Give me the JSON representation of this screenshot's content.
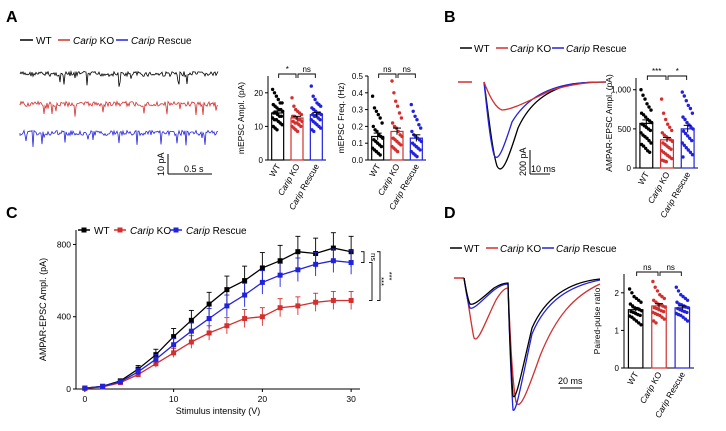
{
  "colors": {
    "wt": "#000000",
    "ko": "#d32f2f",
    "rescue": "#2222dd"
  },
  "panels": {
    "A": {
      "letter": "A",
      "scale_y": "10 pA",
      "scale_x": "0.5 s"
    },
    "B": {
      "letter": "B",
      "scale_y": "200 pA",
      "scale_x": "10 ms"
    },
    "C": {
      "letter": "C"
    },
    "D": {
      "letter": "D",
      "scale_x": "20 ms"
    }
  },
  "legend": {
    "wt": "WT",
    "ko_italic": "Carip",
    "ko_rest": " KO",
    "rescue_italic": "Carip",
    "rescue_rest": " Rescue"
  },
  "xgroups": {
    "wt": "WT",
    "ko": "Carip KO",
    "rescue": "Carip Rescue"
  },
  "chart_data": [
    {
      "id": "A_ampl",
      "type": "bar",
      "categories": [
        "WT",
        "Carip KO",
        "Carip Rescue"
      ],
      "values": [
        14,
        12.5,
        13.5
      ],
      "errors": [
        0.6,
        0.5,
        0.6
      ],
      "ylabel": "mEPSC Ampl. (pA)",
      "ylim": [
        0,
        25
      ],
      "yticks": [
        "0",
        "10",
        "20"
      ],
      "ytickvals": [
        0,
        10,
        20
      ],
      "sig": [
        "*",
        "ns"
      ],
      "points": [
        [
          21,
          20,
          19,
          18,
          17,
          17,
          16.5,
          16,
          15.5,
          15,
          15,
          14.5,
          14,
          14,
          13.5,
          13,
          13,
          12.5,
          12,
          12,
          11.5,
          11,
          10.5,
          10,
          9.5,
          9
        ],
        [
          18.5,
          16,
          15,
          14.5,
          14,
          13.5,
          13,
          13,
          12.5,
          12,
          12,
          11.5,
          11.5,
          11,
          11,
          10.5,
          10,
          10,
          9.5,
          9,
          8.5
        ],
        [
          22,
          19,
          18,
          17,
          16.5,
          16,
          15.5,
          15,
          14.5,
          14,
          14,
          13.5,
          13.5,
          13,
          13,
          12.5,
          12,
          12,
          11.5,
          11,
          10.5,
          10,
          9.5,
          9,
          8.5
        ]
      ]
    },
    {
      "id": "A_freq",
      "type": "bar",
      "categories": [
        "WT",
        "Carip KO",
        "Carip Rescue"
      ],
      "values": [
        0.14,
        0.17,
        0.13
      ],
      "errors": [
        0.02,
        0.02,
        0.02
      ],
      "ylabel": "mEPSC Freq. (Hz)",
      "ylim": [
        0,
        0.5
      ],
      "yticks": [
        "0.0",
        "0.1",
        "0.2",
        "0.3",
        "0.4",
        "0.5"
      ],
      "ytickvals": [
        0,
        0.1,
        0.2,
        0.3,
        0.4,
        0.5
      ],
      "sig": [
        "ns",
        "ns"
      ],
      "points": [
        [
          0.38,
          0.31,
          0.29,
          0.27,
          0.25,
          0.22,
          0.2,
          0.18,
          0.17,
          0.15,
          0.14,
          0.13,
          0.12,
          0.11,
          0.1,
          0.09,
          0.08,
          0.07,
          0.06,
          0.05,
          0.04,
          0.03
        ],
        [
          0.47,
          0.4,
          0.35,
          0.32,
          0.28,
          0.25,
          0.22,
          0.2,
          0.19,
          0.17,
          0.15,
          0.14,
          0.13,
          0.12,
          0.11,
          0.1,
          0.09,
          0.08,
          0.07,
          0.06,
          0.05
        ],
        [
          0.33,
          0.29,
          0.26,
          0.24,
          0.21,
          0.19,
          0.17,
          0.15,
          0.14,
          0.13,
          0.12,
          0.11,
          0.1,
          0.09,
          0.08,
          0.07,
          0.06,
          0.05,
          0.04,
          0.03,
          0.02
        ]
      ]
    },
    {
      "id": "B_ampl",
      "type": "bar",
      "categories": [
        "WT",
        "Carip KO",
        "Carip Rescue"
      ],
      "values": [
        570,
        360,
        500
      ],
      "errors": [
        45,
        30,
        45
      ],
      "ylabel": "AMPAR-EPSC Ampl. (pA)",
      "ylim": [
        0,
        1150
      ],
      "yticks": [
        "0",
        "500",
        "1,000"
      ],
      "ytickvals": [
        0,
        500,
        1000
      ],
      "sig": [
        "***",
        "*"
      ],
      "points": [
        [
          1000,
          930,
          880,
          820,
          780,
          740,
          700,
          680,
          650,
          620,
          600,
          580,
          560,
          540,
          520,
          500,
          480,
          450,
          420,
          400,
          380,
          350,
          320,
          300,
          280,
          250,
          220,
          200
        ],
        [
          880,
          700,
          620,
          560,
          520,
          480,
          450,
          420,
          400,
          380,
          360,
          340,
          320,
          300,
          280,
          260,
          240,
          220,
          200,
          180,
          160,
          140,
          120,
          100,
          90,
          80
        ],
        [
          970,
          920,
          860,
          800,
          760,
          700,
          650,
          620,
          580,
          550,
          520,
          500,
          470,
          440,
          410,
          380,
          350,
          320,
          290,
          260,
          230,
          200,
          170,
          140
        ]
      ]
    },
    {
      "id": "C_io",
      "type": "line",
      "x": [
        0,
        2,
        4,
        6,
        8,
        10,
        12,
        14,
        16,
        18,
        20,
        22,
        24,
        26,
        28,
        30
      ],
      "xlabel": "Stimulus intensity (V)",
      "ylabel": "AMPAR-EPSC Ampl. (pA)",
      "xlim": [
        -1,
        31
      ],
      "ylim": [
        0,
        880
      ],
      "xticks": [
        "0",
        "10",
        "20",
        "30"
      ],
      "xtickvals": [
        0,
        10,
        20,
        30
      ],
      "yticks": [
        "0",
        "400",
        "800"
      ],
      "ytickvals": [
        0,
        400,
        800
      ],
      "series": [
        {
          "name": "WT",
          "values": [
            5,
            15,
            45,
            110,
            190,
            290,
            380,
            470,
            550,
            600,
            670,
            710,
            760,
            750,
            780,
            760
          ],
          "errors": [
            3,
            5,
            10,
            20,
            30,
            45,
            55,
            65,
            75,
            80,
            85,
            85,
            85,
            85,
            85,
            85
          ]
        },
        {
          "name": "Carip KO",
          "values": [
            4,
            12,
            35,
            80,
            140,
            200,
            260,
            310,
            350,
            390,
            400,
            450,
            460,
            480,
            490,
            490
          ],
          "errors": [
            2,
            4,
            8,
            15,
            20,
            25,
            35,
            40,
            45,
            50,
            50,
            50,
            50,
            50,
            50,
            50
          ]
        },
        {
          "name": "Carip Rescue",
          "values": [
            5,
            14,
            40,
            95,
            165,
            245,
            320,
            390,
            460,
            520,
            590,
            630,
            660,
            690,
            710,
            700
          ],
          "errors": [
            3,
            5,
            9,
            18,
            25,
            35,
            45,
            55,
            60,
            65,
            65,
            65,
            65,
            65,
            65,
            65
          ]
        }
      ],
      "sig": [
        "ns",
        "***",
        "***"
      ]
    },
    {
      "id": "D_ppr",
      "type": "bar",
      "categories": [
        "WT",
        "Carip KO",
        "Carip Rescue"
      ],
      "values": [
        1.55,
        1.65,
        1.6
      ],
      "errors": [
        0.05,
        0.06,
        0.05
      ],
      "ylabel": "Paired-pulse ratio",
      "ylim": [
        0,
        2.5
      ],
      "yticks": [
        "0",
        "1",
        "2"
      ],
      "ytickvals": [
        0,
        1,
        2
      ],
      "sig": [
        "ns",
        "ns"
      ],
      "points": [
        [
          2.1,
          2.0,
          1.9,
          1.85,
          1.8,
          1.75,
          1.7,
          1.65,
          1.6,
          1.58,
          1.55,
          1.52,
          1.5,
          1.48,
          1.45,
          1.42,
          1.4,
          1.38,
          1.35,
          1.3,
          1.25,
          1.2,
          1.15
        ],
        [
          2.3,
          2.15,
          2.05,
          1.95,
          1.9,
          1.85,
          1.8,
          1.75,
          1.7,
          1.68,
          1.65,
          1.62,
          1.6,
          1.58,
          1.55,
          1.52,
          1.5,
          1.48,
          1.45,
          1.42,
          1.4,
          1.35,
          1.3,
          1.25,
          1.2
        ],
        [
          2.15,
          2.05,
          1.95,
          1.9,
          1.85,
          1.8,
          1.75,
          1.7,
          1.68,
          1.65,
          1.62,
          1.6,
          1.58,
          1.55,
          1.52,
          1.5,
          1.48,
          1.45,
          1.42,
          1.4,
          1.35,
          1.3,
          1.25
        ]
      ]
    }
  ]
}
